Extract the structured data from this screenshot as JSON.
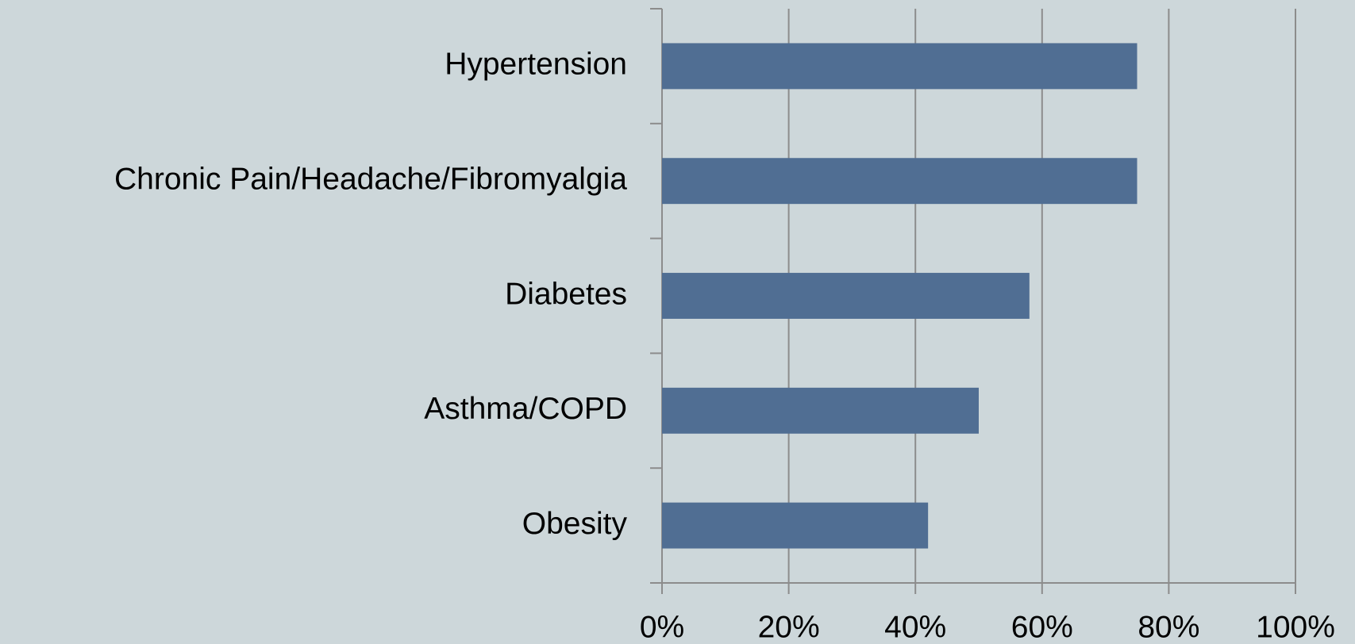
{
  "chart_data": {
    "type": "barh",
    "categories": [
      "Hypertension",
      "Chronic Pain/Headache/Fibromyalgia",
      "Diabetes",
      "Asthma/COPD",
      "Obesity"
    ],
    "values": [
      75,
      75,
      58,
      50,
      42
    ],
    "color": "#506e93",
    "xlim": [
      0,
      100
    ],
    "xticks": [
      {
        "value": 0,
        "label": "0%"
      },
      {
        "value": 20,
        "label": "20%"
      },
      {
        "value": 40,
        "label": "40%"
      },
      {
        "value": 60,
        "label": "60%"
      },
      {
        "value": 80,
        "label": "80%"
      },
      {
        "value": 100,
        "label": "100%"
      }
    ],
    "grid": true
  }
}
